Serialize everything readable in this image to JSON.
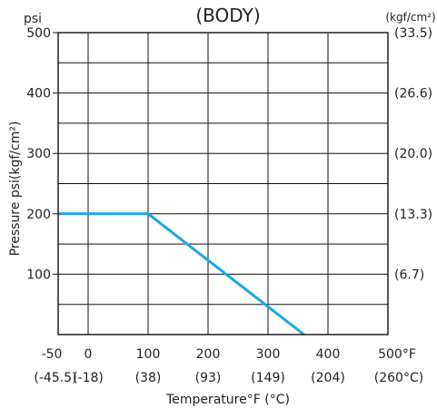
{
  "chart_data": {
    "type": "line",
    "title": "(BODY)",
    "left_unit": "psi",
    "right_unit": "(kgf/cm²)",
    "ylabel": "Pressure  psi(kgf/cm²)",
    "xlabel": "Temperature°F (°C)",
    "xlim": [
      -50,
      500
    ],
    "ylim": [
      0,
      500
    ],
    "x_ticks_f": [
      "-50",
      "0",
      "100",
      "200",
      "300",
      "400",
      "500°F"
    ],
    "x_ticks_c": [
      "(-45.5)",
      "(-18)",
      "(38)",
      "(93)",
      "(149)",
      "(204)",
      "(260°C)"
    ],
    "y_ticks_left": [
      "100",
      "200",
      "300",
      "400",
      "500"
    ],
    "y_ticks_right": [
      "(6.7)",
      "(13.3)",
      "(20.0)",
      "(26.6)",
      "(33.5)"
    ],
    "series": [
      {
        "x": [
          -50,
          100,
          360
        ],
        "y": [
          200,
          200,
          0
        ]
      }
    ],
    "grid": true,
    "colors": {
      "series": "#1aa7e3",
      "grid": "#111111"
    }
  }
}
